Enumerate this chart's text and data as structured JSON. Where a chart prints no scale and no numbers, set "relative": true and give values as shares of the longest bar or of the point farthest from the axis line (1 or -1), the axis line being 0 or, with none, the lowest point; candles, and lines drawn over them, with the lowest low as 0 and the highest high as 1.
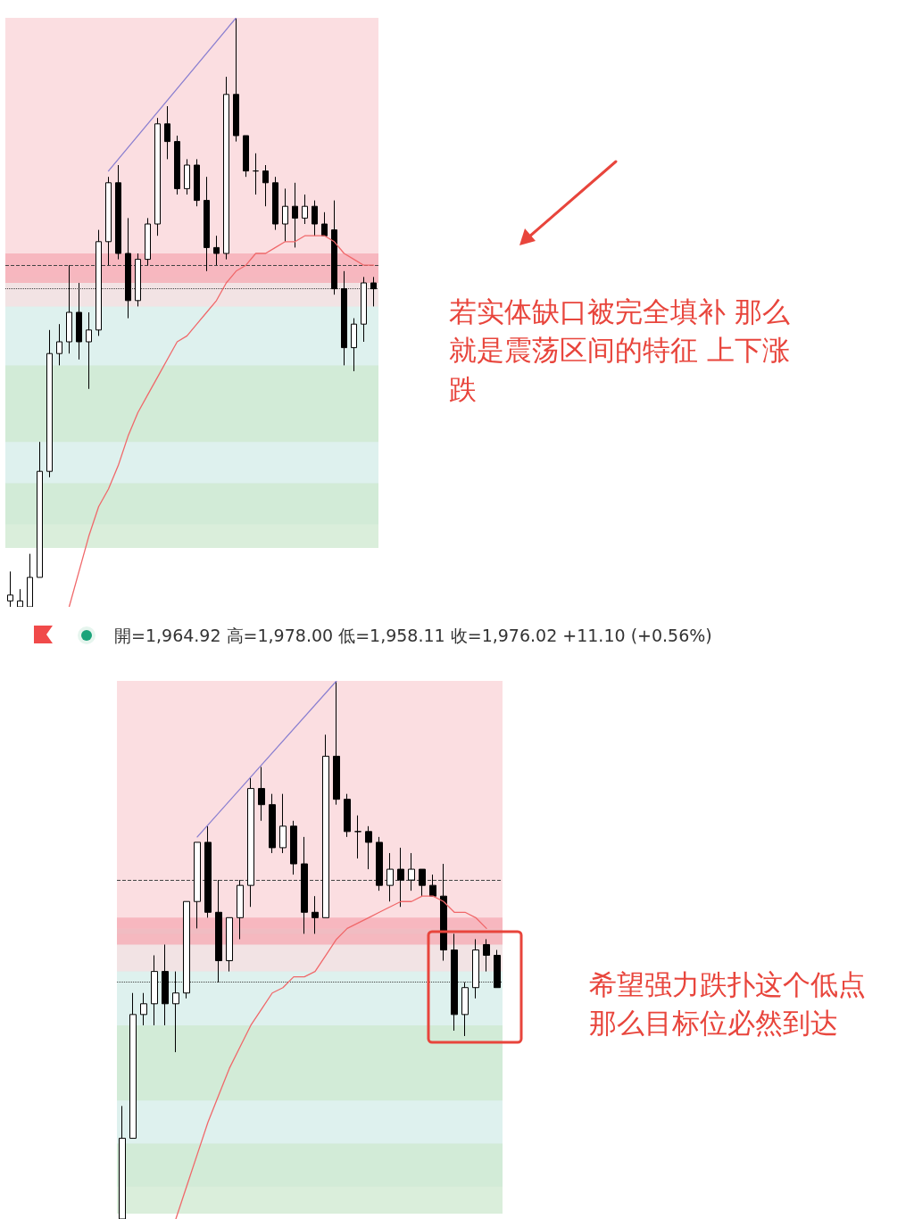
{
  "chart_data": [
    {
      "type": "candlestick",
      "relative": true,
      "grid": false,
      "tick_labels": false,
      "categories": [
        null,
        null,
        null,
        null,
        null,
        null,
        null,
        null,
        null,
        null,
        null,
        null,
        null,
        null,
        null,
        null,
        null,
        null,
        null,
        null,
        null,
        null,
        null,
        null,
        null,
        null,
        null,
        null,
        null,
        null,
        null,
        null,
        null,
        null,
        null,
        null,
        null,
        null
      ],
      "ohlc": [
        [
          0.01,
          0.06,
          0,
          0.02
        ],
        [
          0.0,
          0.03,
          0,
          0.01
        ],
        [
          0.0,
          0.09,
          0,
          0.05
        ],
        [
          0.05,
          0.28,
          0.05,
          0.23
        ],
        [
          0.23,
          0.47,
          0.22,
          0.43
        ],
        [
          0.43,
          0.48,
          0.41,
          0.45
        ],
        [
          0.45,
          0.58,
          0.43,
          0.5
        ],
        [
          0.5,
          0.55,
          0.42,
          0.45
        ],
        [
          0.45,
          0.5,
          0.37,
          0.47
        ],
        [
          0.47,
          0.64,
          0.46,
          0.62
        ],
        [
          0.62,
          0.73,
          0.58,
          0.72
        ],
        [
          0.72,
          0.75,
          0.59,
          0.6
        ],
        [
          0.6,
          0.66,
          0.49,
          0.52
        ],
        [
          0.52,
          0.6,
          0.51,
          0.59
        ],
        [
          0.59,
          0.66,
          0.58,
          0.65
        ],
        [
          0.65,
          0.83,
          0.63,
          0.82
        ],
        [
          0.82,
          0.85,
          0.76,
          0.79
        ],
        [
          0.79,
          0.8,
          0.7,
          0.71
        ],
        [
          0.71,
          0.76,
          0.7,
          0.75
        ],
        [
          0.75,
          0.76,
          0.68,
          0.69
        ],
        [
          0.69,
          0.73,
          0.57,
          0.61
        ],
        [
          0.61,
          0.63,
          0.58,
          0.6
        ],
        [
          0.6,
          0.9,
          0.59,
          0.87
        ],
        [
          0.87,
          1,
          0.79,
          0.8
        ],
        [
          0.8,
          0.8,
          0.73,
          0.74
        ],
        [
          0.74,
          0.77,
          0.7,
          0.74
        ],
        [
          0.74,
          0.75,
          0.68,
          0.72
        ],
        [
          0.72,
          0.73,
          0.64,
          0.65
        ],
        [
          0.65,
          0.71,
          0.62,
          0.68
        ],
        [
          0.68,
          0.72,
          0.61,
          0.66
        ],
        [
          0.66,
          0.7,
          0.65,
          0.68
        ],
        [
          0.68,
          0.69,
          0.63,
          0.65
        ],
        [
          0.65,
          0.67,
          0.63,
          0.63
        ],
        [
          0.64,
          0.69,
          0.53,
          0.54
        ],
        [
          0.54,
          0.57,
          0.41,
          0.44
        ],
        [
          0.44,
          0.49,
          0.4,
          0.48
        ],
        [
          0.48,
          0.56,
          0.45,
          0.55
        ],
        [
          0.55,
          0.56,
          0.51,
          0.54
        ]
      ],
      "bands": [
        {
          "axis": "y",
          "from": 0.14,
          "to": 0.56,
          "color": "#d3ece8"
        },
        {
          "axis": "y",
          "from": 0.28,
          "to": 0.41,
          "color": "#cde8cf"
        },
        {
          "axis": "y",
          "from": 0.1,
          "to": 0.21,
          "color": "#cde8cf"
        },
        {
          "axis": "y",
          "from": 0.56,
          "to": 1.0,
          "color": "#f9d3d7"
        },
        {
          "axis": "y",
          "from": 0.51,
          "to": 0.58,
          "color": "#f8dde0"
        },
        {
          "axis": "y",
          "from": 0.55,
          "to": 0.6,
          "color": "#f6aab3"
        }
      ],
      "ref_lines": [
        {
          "axis": "y",
          "value": 0.58,
          "color": "#444444",
          "line_style": "dashed"
        },
        {
          "axis": "y",
          "value": 0.54,
          "color": "#444444",
          "line_style": "dotted"
        }
      ],
      "annotations": [
        "若实体缺口被完全填补 那么就是震荡区间的特征 上下涨跌"
      ]
    },
    {
      "type": "line",
      "relative": true,
      "grid": false,
      "tick_labels": false,
      "marker": "none",
      "line_style": "solid",
      "categories": [
        null,
        null,
        null,
        null,
        null,
        null,
        null,
        null,
        null,
        null,
        null,
        null,
        null,
        null,
        null,
        null,
        null,
        null,
        null,
        null,
        null,
        null,
        null,
        null,
        null,
        null,
        null,
        null,
        null,
        null,
        null,
        null,
        null,
        null,
        null,
        null,
        null,
        null
      ],
      "series": [
        {
          "type": "line",
          "color": "#f0686a",
          "values": [
            null,
            null,
            null,
            null,
            null,
            null,
            0.0,
            0.06,
            0.12,
            0.17,
            0.2,
            0.24,
            0.29,
            0.33,
            0.36,
            0.39,
            0.42,
            0.45,
            0.46,
            0.48,
            0.5,
            0.52,
            0.55,
            0.57,
            0.58,
            0.6,
            0.6,
            0.61,
            0.62,
            0.62,
            0.63,
            0.63,
            0.63,
            0.62,
            0.6,
            0.59,
            0.58,
            0.58
          ]
        },
        {
          "type": "line",
          "color": "#8a7fd0",
          "values": [
            null,
            null,
            null,
            null,
            null,
            null,
            null,
            null,
            null,
            null,
            0.74,
            null,
            null,
            null,
            null,
            null,
            null,
            null,
            null,
            null,
            null,
            null,
            null,
            1,
            null,
            null,
            null,
            null,
            null,
            null,
            null,
            null,
            null,
            null,
            null,
            null,
            null,
            null
          ]
        }
      ]
    },
    {
      "type": "candlestick",
      "relative": true,
      "grid": false,
      "tick_labels": false,
      "categories": [
        null,
        null,
        null,
        null,
        null,
        null,
        null,
        null,
        null,
        null,
        null,
        null,
        null,
        null,
        null,
        null,
        null,
        null,
        null,
        null,
        null,
        null,
        null,
        null,
        null,
        null,
        null,
        null,
        null,
        null,
        null,
        null,
        null,
        null,
        null,
        null
      ],
      "ohlc": [
        [
          0,
          0.21,
          0,
          0.15
        ],
        [
          0.15,
          0.42,
          0.15,
          0.38
        ],
        [
          0.38,
          0.42,
          0.36,
          0.4
        ],
        [
          0.4,
          0.49,
          0.36,
          0.46
        ],
        [
          0.46,
          0.51,
          0.36,
          0.4
        ],
        [
          0.4,
          0.46,
          0.31,
          0.42
        ],
        [
          0.42,
          0.59,
          0.41,
          0.59
        ],
        [
          0.59,
          0.7,
          0.54,
          0.7
        ],
        [
          0.7,
          0.73,
          0.56,
          0.57
        ],
        [
          0.57,
          0.63,
          0.44,
          0.48
        ],
        [
          0.48,
          0.56,
          0.46,
          0.56
        ],
        [
          0.56,
          0.63,
          0.52,
          0.62
        ],
        [
          0.62,
          0.82,
          0.58,
          0.8
        ],
        [
          0.8,
          0.84,
          0.74,
          0.77
        ],
        [
          0.77,
          0.79,
          0.68,
          0.69
        ],
        [
          0.69,
          0.79,
          0.68,
          0.73
        ],
        [
          0.73,
          0.74,
          0.64,
          0.66
        ],
        [
          0.66,
          0.71,
          0.53,
          0.57
        ],
        [
          0.57,
          0.6,
          0.53,
          0.56
        ],
        [
          0.56,
          0.9,
          0.56,
          0.86
        ],
        [
          0.86,
          1,
          0.77,
          0.78
        ],
        [
          0.78,
          0.79,
          0.71,
          0.72
        ],
        [
          0.72,
          0.75,
          0.67,
          0.72
        ],
        [
          0.72,
          0.73,
          0.65,
          0.7
        ],
        [
          0.7,
          0.71,
          0.61,
          0.62
        ],
        [
          0.62,
          0.68,
          0.59,
          0.65
        ],
        [
          0.65,
          0.69,
          0.58,
          0.63
        ],
        [
          0.63,
          0.68,
          0.61,
          0.65
        ],
        [
          0.65,
          0.65,
          0.6,
          0.62
        ],
        [
          0.62,
          0.64,
          0.6,
          0.6
        ],
        [
          0.6,
          0.66,
          0.48,
          0.5
        ],
        [
          0.5,
          0.53,
          0.35,
          0.38
        ],
        [
          0.38,
          0.44,
          0.34,
          0.43
        ],
        [
          0.43,
          0.52,
          0.41,
          0.5
        ],
        [
          0.51,
          0.52,
          0.46,
          0.49
        ],
        [
          0.49,
          0.5,
          0.43,
          0.43
        ]
      ],
      "bands": [
        {
          "axis": "y",
          "from": 0.06,
          "to": 0.54,
          "color": "#d3ece8"
        },
        {
          "axis": "y",
          "from": 0.22,
          "to": 0.36,
          "color": "#cde8cf"
        },
        {
          "axis": "y",
          "from": 0.01,
          "to": 0.14,
          "color": "#cde8cf"
        },
        {
          "axis": "y",
          "from": 0.54,
          "to": 1.0,
          "color": "#f9d3d7"
        },
        {
          "axis": "y",
          "from": 0.46,
          "to": 0.53,
          "color": "#f8dde0"
        },
        {
          "axis": "y",
          "from": 0.51,
          "to": 0.56,
          "color": "#f6aab3"
        }
      ],
      "ref_lines": [
        {
          "axis": "y",
          "value": 0.63,
          "color": "#444444",
          "line_style": "dashed"
        },
        {
          "axis": "y",
          "value": 0.44,
          "color": "#444444",
          "line_style": "dotted"
        }
      ],
      "annotations": [
        "開=1,964.92 高=1,978.00 低=1,958.11 收=1,976.02 +11.10 (+0.56%)",
        "希望强力跌扑这个低点那么目标位必然到达"
      ]
    },
    {
      "type": "line",
      "relative": true,
      "grid": false,
      "tick_labels": false,
      "marker": "none",
      "line_style": "solid",
      "categories": [
        null,
        null,
        null,
        null,
        null,
        null,
        null,
        null,
        null,
        null,
        null,
        null,
        null,
        null,
        null,
        null,
        null,
        null,
        null,
        null,
        null,
        null,
        null,
        null,
        null,
        null,
        null,
        null,
        null,
        null,
        null,
        null,
        null,
        null,
        null,
        null
      ],
      "series": [
        {
          "type": "line",
          "color": "#f0686a",
          "values": [
            null,
            null,
            null,
            null,
            null,
            0.0,
            0.06,
            0.12,
            0.18,
            0.23,
            0.28,
            0.32,
            0.36,
            0.39,
            0.42,
            0.43,
            0.45,
            0.45,
            0.46,
            0.49,
            0.52,
            0.54,
            0.55,
            0.56,
            0.57,
            0.58,
            0.59,
            0.59,
            0.6,
            0.6,
            0.59,
            0.57,
            0.57,
            0.56,
            0.54,
            null
          ]
        },
        {
          "type": "line",
          "color": "#8a7fd0",
          "values": [
            null,
            null,
            null,
            null,
            null,
            null,
            null,
            0.71,
            null,
            null,
            null,
            null,
            null,
            null,
            null,
            null,
            null,
            null,
            null,
            null,
            1,
            null,
            null,
            null,
            null,
            null,
            null,
            null,
            null,
            null,
            null,
            null,
            null,
            null,
            null,
            null
          ]
        }
      ]
    }
  ]
}
